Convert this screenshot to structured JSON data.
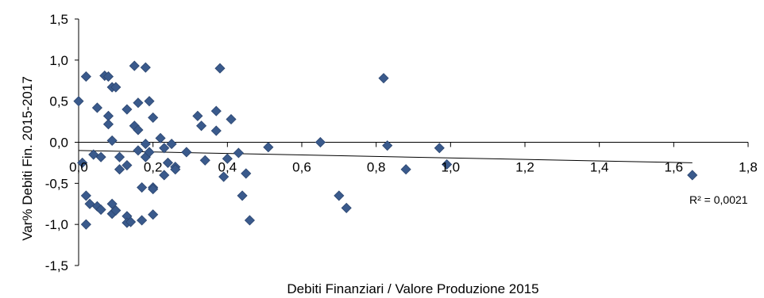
{
  "chart_data": {
    "type": "scatter",
    "xlabel": "Debiti Finanziari / Valore Produzione 2015",
    "ylabel": "Var% Debiti Fin. 2015-2017",
    "xlim": [
      0,
      1.8
    ],
    "ylim": [
      -1.5,
      1.5
    ],
    "x_ticks": [
      "0,0",
      "0,2",
      "0,4",
      "0,6",
      "0,8",
      "1,0",
      "1,2",
      "1,4",
      "1,6",
      "1,8"
    ],
    "y_ticks": [
      "1,5",
      "1,0",
      "0,5",
      "0,0",
      "-0,5",
      "-1,0",
      "-1,5"
    ],
    "marker_color": "#3A5A8C",
    "trendline": {
      "type": "linear",
      "start": [
        0,
        -0.1
      ],
      "end": [
        1.65,
        -0.25
      ],
      "annotation": "R² = 0,0021"
    },
    "points": [
      [
        0.0,
        0.5
      ],
      [
        0.02,
        0.8
      ],
      [
        0.01,
        -0.25
      ],
      [
        0.02,
        -0.65
      ],
      [
        0.03,
        -0.75
      ],
      [
        0.02,
        -1.0
      ],
      [
        0.04,
        -0.15
      ],
      [
        0.05,
        0.42
      ],
      [
        0.05,
        -0.78
      ],
      [
        0.06,
        -0.82
      ],
      [
        0.06,
        -0.18
      ],
      [
        0.07,
        0.81
      ],
      [
        0.08,
        0.8
      ],
      [
        0.08,
        0.32
      ],
      [
        0.08,
        0.22
      ],
      [
        0.09,
        0.67
      ],
      [
        0.1,
        0.67
      ],
      [
        0.09,
        0.02
      ],
      [
        0.09,
        -0.75
      ],
      [
        0.09,
        -0.87
      ],
      [
        0.1,
        -0.83
      ],
      [
        0.11,
        -0.18
      ],
      [
        0.11,
        -0.33
      ],
      [
        0.13,
        0.4
      ],
      [
        0.13,
        -0.28
      ],
      [
        0.13,
        -0.9
      ],
      [
        0.13,
        -0.98
      ],
      [
        0.14,
        -0.97
      ],
      [
        0.15,
        0.93
      ],
      [
        0.15,
        0.2
      ],
      [
        0.16,
        0.15
      ],
      [
        0.16,
        -0.1
      ],
      [
        0.16,
        0.48
      ],
      [
        0.17,
        -0.55
      ],
      [
        0.17,
        -0.95
      ],
      [
        0.18,
        0.91
      ],
      [
        0.18,
        -0.02
      ],
      [
        0.18,
        -0.18
      ],
      [
        0.19,
        0.5
      ],
      [
        0.2,
        0.3
      ],
      [
        0.19,
        -0.12
      ],
      [
        0.2,
        -0.55
      ],
      [
        0.2,
        -0.57
      ],
      [
        0.2,
        -0.88
      ],
      [
        0.22,
        0.05
      ],
      [
        0.23,
        -0.07
      ],
      [
        0.23,
        -0.4
      ],
      [
        0.24,
        -0.25
      ],
      [
        0.25,
        -0.02
      ],
      [
        0.26,
        -0.3
      ],
      [
        0.26,
        -0.33
      ],
      [
        0.29,
        -0.12
      ],
      [
        0.32,
        0.32
      ],
      [
        0.33,
        0.2
      ],
      [
        0.34,
        -0.22
      ],
      [
        0.37,
        0.38
      ],
      [
        0.37,
        0.14
      ],
      [
        0.38,
        0.9
      ],
      [
        0.39,
        -0.42
      ],
      [
        0.4,
        -0.2
      ],
      [
        0.41,
        0.28
      ],
      [
        0.43,
        -0.13
      ],
      [
        0.44,
        -0.65
      ],
      [
        0.45,
        -0.38
      ],
      [
        0.46,
        -0.95
      ],
      [
        0.51,
        -0.06
      ],
      [
        0.65,
        0.0
      ],
      [
        0.7,
        -0.65
      ],
      [
        0.72,
        -0.8
      ],
      [
        0.82,
        0.78
      ],
      [
        0.83,
        -0.04
      ],
      [
        0.88,
        -0.33
      ],
      [
        0.97,
        -0.07
      ],
      [
        0.99,
        -0.27
      ],
      [
        1.65,
        -0.4
      ]
    ]
  }
}
